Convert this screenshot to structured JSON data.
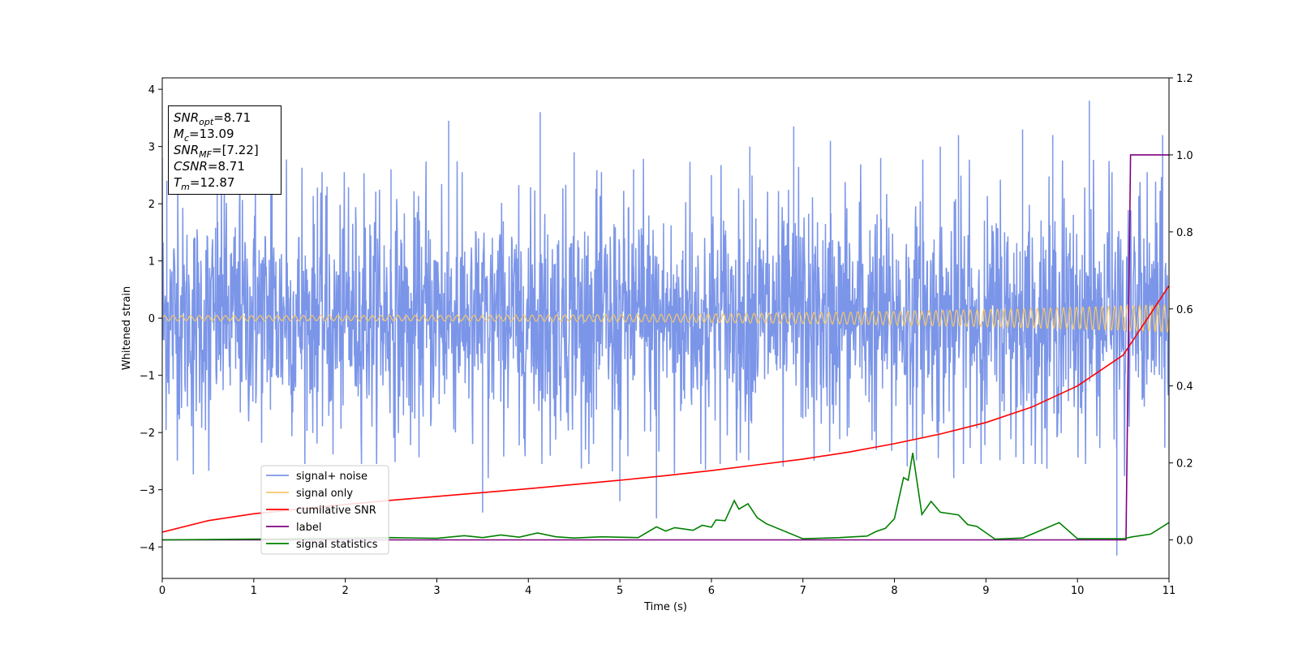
{
  "chart_data": {
    "type": "line",
    "xlabel": "Time (s)",
    "ylabel": "Whitened strain",
    "xlim": [
      0,
      11
    ],
    "ylim": [
      -4.55,
      4.2
    ],
    "y2lim": [
      -0.1,
      1.2
    ],
    "x_ticks": [
      0,
      1,
      2,
      3,
      4,
      5,
      6,
      7,
      8,
      9,
      10,
      11
    ],
    "y_ticks": [
      -4,
      -3,
      -2,
      -1,
      0,
      1,
      2,
      3,
      4
    ],
    "y2_ticks": [
      0.0,
      0.2,
      0.4,
      0.6,
      0.8,
      1.0,
      1.2
    ],
    "legend_position": "lower-left",
    "colors": {
      "noise": "#7b95e8",
      "signal": "#f5c868",
      "csnr": "#ff0000",
      "label": "#800080",
      "stats": "#008000"
    },
    "series": [
      {
        "name": "signal+ noise",
        "axis": "left",
        "description_envelope": {
          "typical_range": [
            -2.5,
            2.5
          ],
          "min_spike": -4.15,
          "max_spike": 3.8
        },
        "spikes": [
          [
            0.05,
            2.4
          ],
          [
            0.6,
            2.5
          ],
          [
            1.2,
            2.2
          ],
          [
            1.8,
            2.3
          ],
          [
            2.5,
            2.6
          ],
          [
            3.13,
            3.45
          ],
          [
            3.5,
            -3.4
          ],
          [
            4.13,
            3.6
          ],
          [
            4.5,
            2.9
          ],
          [
            5.0,
            -3.2
          ],
          [
            5.15,
            2.6
          ],
          [
            5.4,
            -3.5
          ],
          [
            6.0,
            2.5
          ],
          [
            6.42,
            3.0
          ],
          [
            6.9,
            3.35
          ],
          [
            7.3,
            3.1
          ],
          [
            7.85,
            2.8
          ],
          [
            8.5,
            3.0
          ],
          [
            8.7,
            3.2
          ],
          [
            9.4,
            3.3
          ],
          [
            9.73,
            3.2
          ],
          [
            10.13,
            3.8
          ],
          [
            10.43,
            -4.15
          ],
          [
            10.93,
            3.2
          ]
        ]
      },
      {
        "name": "signal only",
        "axis": "left",
        "chirp": {
          "f_start": 10.5,
          "f_end": 15,
          "amp_start": 0.045,
          "amp_end": 0.24
        }
      },
      {
        "name": "cumilative SNR",
        "axis": "right",
        "x": [
          0,
          0.5,
          1,
          1.5,
          2,
          2.5,
          3,
          3.5,
          4,
          4.5,
          5,
          5.5,
          6,
          6.5,
          7,
          7.5,
          8,
          8.5,
          9,
          9.5,
          10,
          10.5,
          11
        ],
        "values": [
          0.02,
          0.05,
          0.068,
          0.08,
          0.092,
          0.103,
          0.113,
          0.123,
          0.133,
          0.144,
          0.155,
          0.167,
          0.18,
          0.195,
          0.21,
          0.228,
          0.25,
          0.275,
          0.305,
          0.345,
          0.4,
          0.48,
          0.66
        ]
      },
      {
        "name": "label",
        "axis": "right",
        "x": [
          0,
          10.53,
          10.58,
          11
        ],
        "values": [
          0,
          0,
          1,
          1
        ]
      },
      {
        "name": "signal statistics",
        "axis": "right",
        "x": [
          0,
          0.5,
          1,
          1.5,
          2,
          2.5,
          3,
          3.3,
          3.5,
          3.7,
          3.9,
          4.1,
          4.3,
          4.5,
          4.8,
          5.0,
          5.2,
          5.4,
          5.5,
          5.6,
          5.8,
          5.9,
          6.0,
          6.05,
          6.15,
          6.25,
          6.3,
          6.4,
          6.5,
          6.6,
          7.0,
          7.4,
          7.7,
          7.8,
          7.9,
          8.0,
          8.1,
          8.15,
          8.2,
          8.3,
          8.4,
          8.5,
          8.7,
          8.8,
          8.9,
          9.1,
          9.4,
          9.6,
          9.8,
          10.0,
          10.5,
          10.6,
          10.8,
          11.0
        ],
        "values": [
          0.0,
          0.001,
          0.002,
          0.003,
          0.004,
          0.006,
          0.004,
          0.011,
          0.006,
          0.013,
          0.007,
          0.018,
          0.008,
          0.005,
          0.008,
          0.007,
          0.006,
          0.034,
          0.023,
          0.032,
          0.025,
          0.038,
          0.033,
          0.052,
          0.05,
          0.102,
          0.08,
          0.094,
          0.058,
          0.042,
          0.003,
          0.006,
          0.01,
          0.022,
          0.03,
          0.055,
          0.162,
          0.155,
          0.226,
          0.066,
          0.1,
          0.072,
          0.065,
          0.04,
          0.035,
          0.002,
          0.005,
          0.025,
          0.045,
          0.003,
          0.003,
          0.008,
          0.015,
          0.045
        ]
      }
    ],
    "annotations": [
      {
        "label": "SNR",
        "sub": "opt",
        "value": "=8.71"
      },
      {
        "label": "M",
        "sub": "c",
        "value": "=13.09"
      },
      {
        "label": "SNR",
        "sub": "MF",
        "value": "=[7.22]"
      },
      {
        "label": "CSNR",
        "sub": "",
        "value": "=8.71"
      },
      {
        "label": "T",
        "sub": "m",
        "value": "=12.87"
      }
    ]
  }
}
